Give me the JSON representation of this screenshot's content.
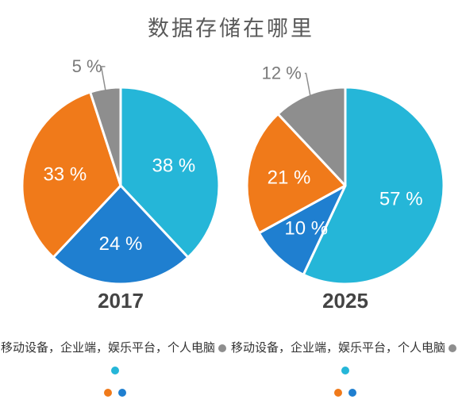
{
  "title": "数据存储在哪里",
  "legend_text": "移动设备，企业端，娱乐平台，个人电脑",
  "legend_colors": [
    "#8e8e8e",
    "#25b6d8",
    "#f07a1a",
    "#1f7fd0"
  ],
  "chart_data": [
    {
      "type": "pie",
      "title": "2017",
      "slices": [
        {
          "value": 38,
          "label": "38 %",
          "color": "#25b6d8"
        },
        {
          "value": 24,
          "label": "24 %",
          "color": "#1f7fd0"
        },
        {
          "value": 33,
          "label": "33 %",
          "color": "#f07a1a"
        },
        {
          "value": 5,
          "label": "5 %",
          "color": "#8e8e8e"
        }
      ]
    },
    {
      "type": "pie",
      "title": "2025",
      "slices": [
        {
          "value": 57,
          "label": "57 %",
          "color": "#25b6d8"
        },
        {
          "value": 10,
          "label": "10 %",
          "color": "#1f7fd0"
        },
        {
          "value": 21,
          "label": "21 %",
          "color": "#f07a1a"
        },
        {
          "value": 12,
          "label": "12 %",
          "color": "#8e8e8e"
        }
      ]
    }
  ]
}
